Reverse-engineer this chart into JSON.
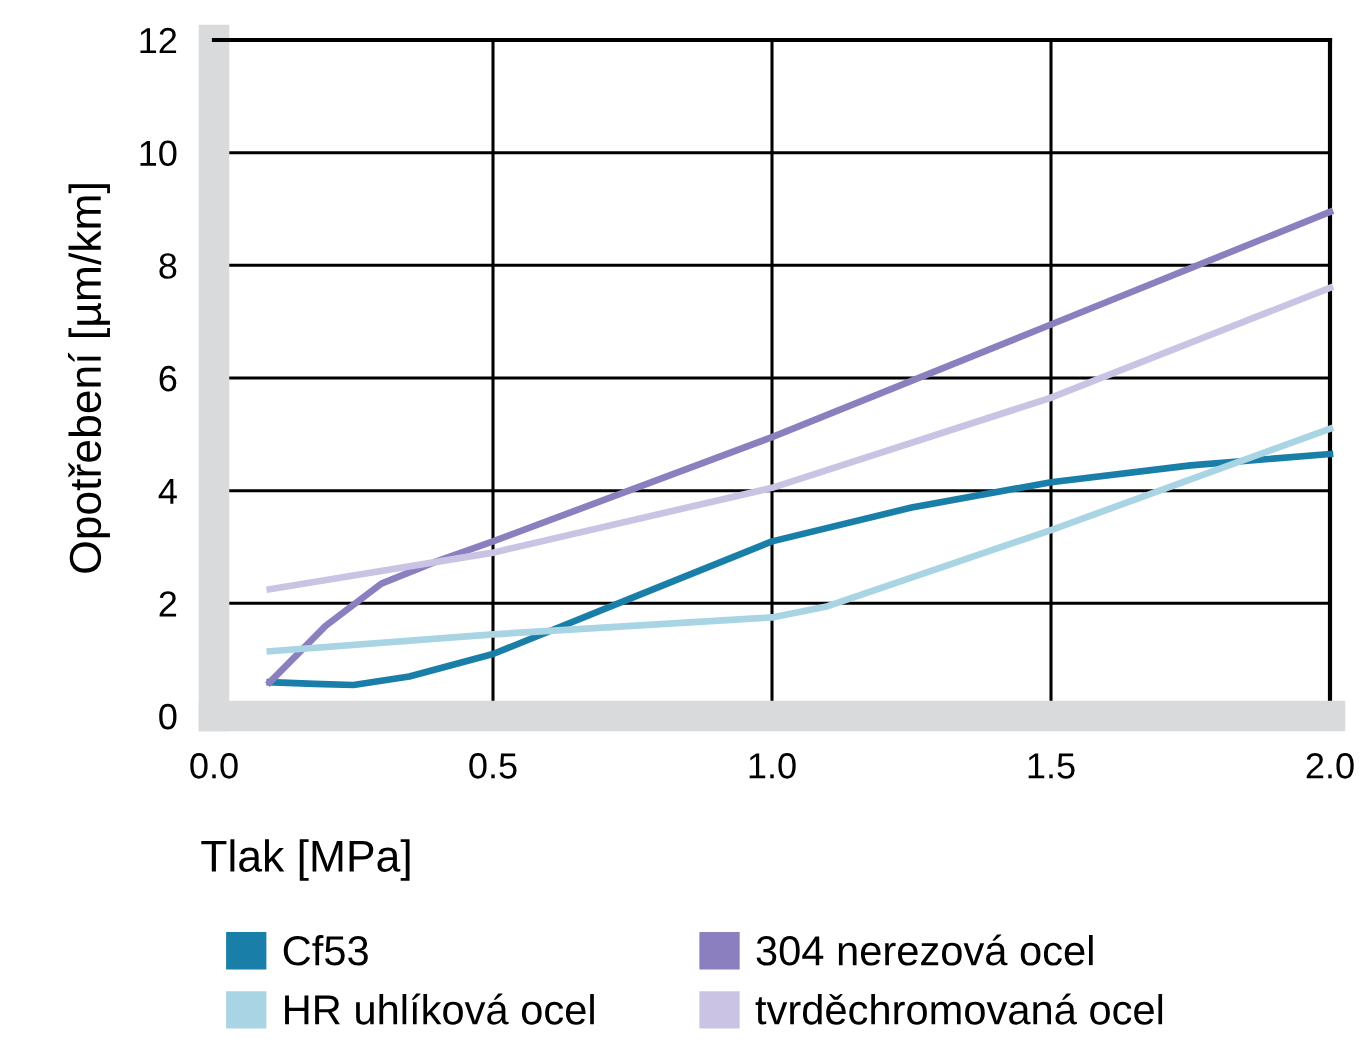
{
  "chart_data": {
    "type": "line",
    "xlabel": "Tlak [MPa]",
    "ylabel": "Opotřebení [µm/km]",
    "xlim": [
      0,
      2
    ],
    "xticks": [
      {
        "value": 0,
        "label": "0.0"
      },
      0.5,
      {
        "value": 1,
        "label": "1.0"
      },
      1.5,
      {
        "value": 2,
        "label": "2.0"
      }
    ],
    "ylim": [
      0,
      12
    ],
    "yticks": [
      0,
      2,
      4,
      6,
      8,
      10,
      12
    ],
    "grid": true,
    "legend": "bottom",
    "marker": "none",
    "line_style": "solid",
    "series": [
      {
        "name": "Cf53",
        "color": "#1a7fa8",
        "x": [
          0.1,
          0.18,
          0.25,
          0.35,
          0.5,
          0.75,
          1.0,
          1.25,
          1.5,
          1.75,
          2.0
        ],
        "values": [
          0.6,
          0.57,
          0.55,
          0.7,
          1.1,
          2.1,
          3.1,
          3.7,
          4.15,
          4.45,
          4.65
        ]
      },
      {
        "name": "304 nerezová ocel",
        "color": "#8c7fbf",
        "x": [
          0.1,
          0.2,
          0.3,
          0.4,
          0.5,
          1.0,
          1.5,
          2.0
        ],
        "values": [
          0.6,
          1.6,
          2.35,
          2.75,
          3.1,
          4.95,
          6.95,
          8.95
        ]
      },
      {
        "name": "HR uhlíková ocel",
        "color": "#a9d4e4",
        "x": [
          0.1,
          0.5,
          1.0,
          1.1,
          1.5,
          2.0
        ],
        "values": [
          1.15,
          1.45,
          1.75,
          1.95,
          3.3,
          5.1
        ]
      },
      {
        "name": "tvrděchromovaná ocel",
        "color": "#cbc3e3",
        "x": [
          0.1,
          0.5,
          1.0,
          1.5,
          2.0
        ],
        "values": [
          2.25,
          2.9,
          4.05,
          5.65,
          7.6
        ]
      }
    ]
  }
}
